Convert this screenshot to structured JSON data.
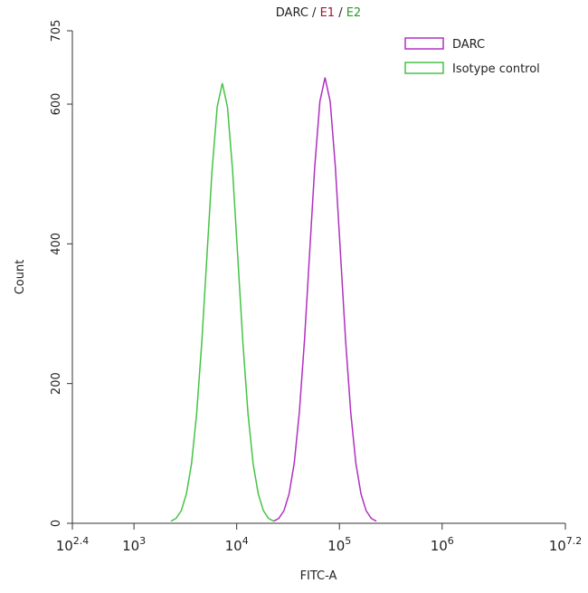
{
  "chart_data": {
    "type": "line",
    "title_parts": [
      "DARC",
      " / ",
      "E1",
      " / ",
      "E2"
    ],
    "title_colors": [
      "#222222",
      "#222222",
      "#a0182e",
      "#222222",
      "#2a9a2a"
    ],
    "xlabel": "FITC-A",
    "ylabel": "Count",
    "xscale": "log",
    "xlim": [
      251.19,
      15848932
    ],
    "xticks": [
      {
        "value": 251.19,
        "label": "10",
        "sup": "2.4"
      },
      {
        "value": 1000,
        "label": "10",
        "sup": "3"
      },
      {
        "value": 10000,
        "label": "10",
        "sup": "4"
      },
      {
        "value": 100000,
        "label": "10",
        "sup": "5"
      },
      {
        "value": 1000000,
        "label": "10",
        "sup": "6"
      },
      {
        "value": 15848932,
        "label": "10",
        "sup": "7.2"
      }
    ],
    "ylim": [
      0,
      705
    ],
    "yticks": [
      0,
      200,
      400,
      600,
      705
    ],
    "legend": "top-right",
    "series": [
      {
        "name": "DARC",
        "color": "#b030c0",
        "x": [
          22909,
          25704,
          28840,
          32359,
          36308,
          40738,
          45709,
          51286,
          57544,
          64565,
          72444,
          81283,
          91201,
          102329,
          114815,
          128825,
          144544,
          162181,
          181970,
          204174,
          229087
        ],
        "values": [
          3,
          7,
          18,
          42,
          86,
          159,
          262,
          387,
          511,
          604,
          638,
          604,
          511,
          387,
          262,
          159,
          86,
          42,
          18,
          7,
          3
        ]
      },
      {
        "name": "Isotype control",
        "color": "#44c444",
        "x": [
          2291,
          2570,
          2884,
          3236,
          3631,
          4074,
          4571,
          5129,
          5754,
          6457,
          7244,
          8128,
          9120,
          10233,
          11482,
          12882,
          14454,
          16218,
          18197,
          20417,
          22909
        ],
        "values": [
          3,
          7,
          18,
          42,
          85,
          157,
          259,
          382,
          505,
          596,
          630,
          596,
          505,
          382,
          259,
          157,
          85,
          42,
          18,
          7,
          3
        ]
      }
    ]
  }
}
